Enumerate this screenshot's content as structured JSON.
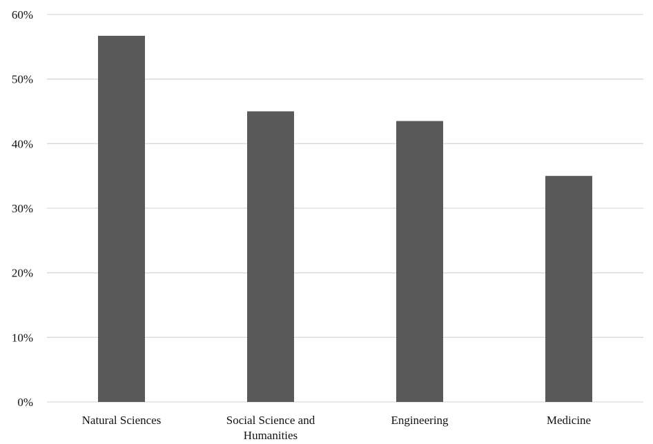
{
  "chart_data": {
    "type": "bar",
    "categories": [
      "Natural Sciences",
      "Social Science and Humanities",
      "Engineering",
      "Medicine"
    ],
    "category_label_lines": [
      [
        "Natural Sciences"
      ],
      [
        "Social Science and",
        "Humanities"
      ],
      [
        "Engineering"
      ],
      [
        "Medicine"
      ]
    ],
    "values": [
      56.7,
      45.0,
      43.5,
      35.0
    ],
    "ylim": [
      0,
      60
    ],
    "yticks": [
      0,
      10,
      20,
      30,
      40,
      50,
      60
    ],
    "ytick_labels": [
      "0%",
      "10%",
      "20%",
      "30%",
      "40%",
      "50%",
      "60%"
    ],
    "title": "",
    "xlabel": "",
    "ylabel": "",
    "grid": true,
    "bar_color": "#595959",
    "grid_color": "#d9d9d9"
  }
}
